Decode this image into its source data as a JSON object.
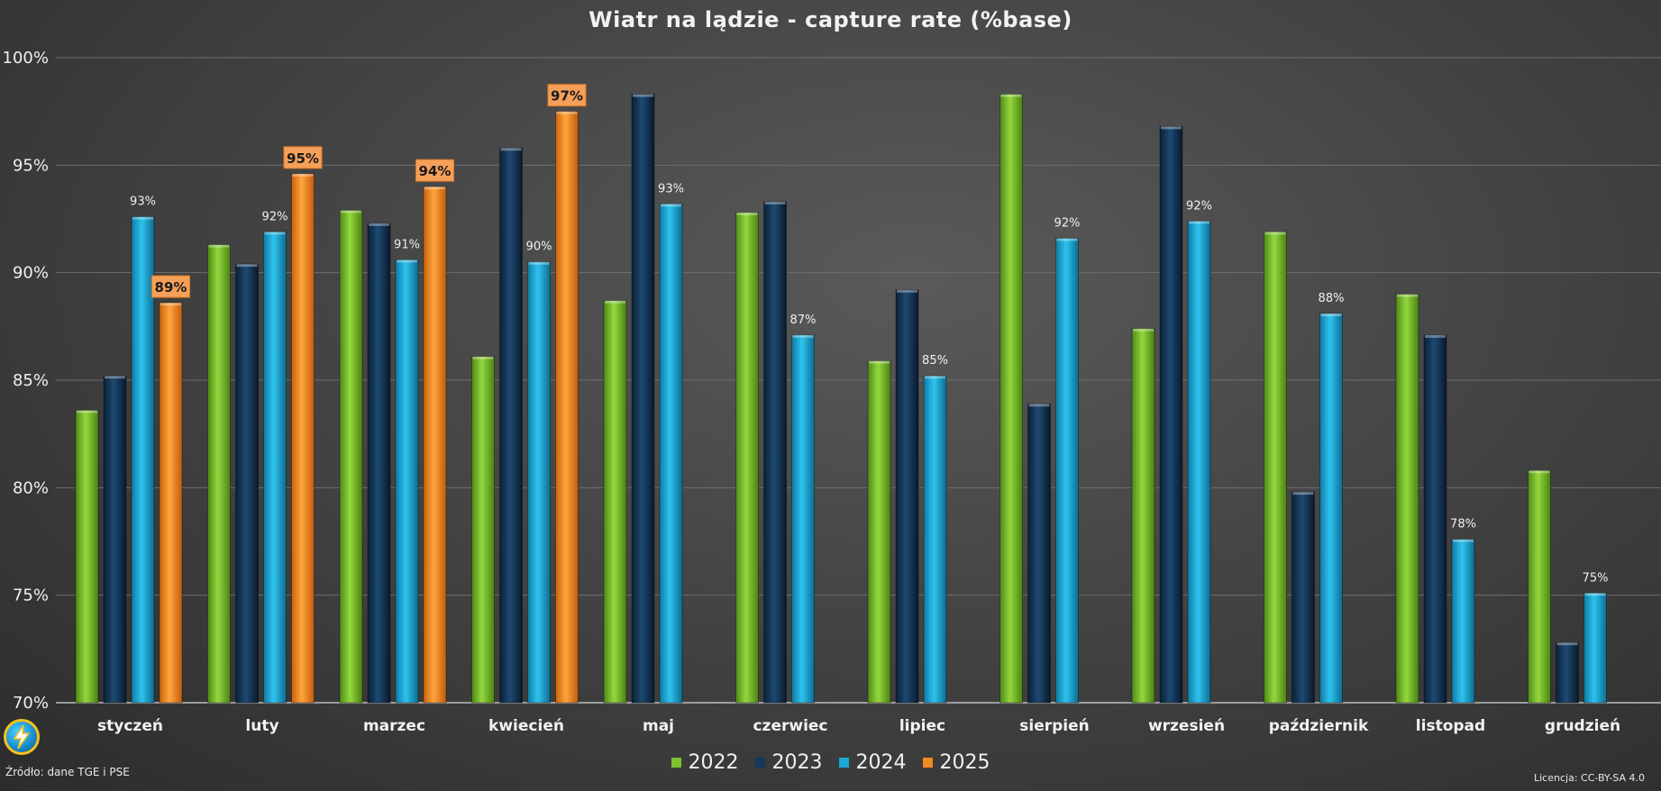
{
  "page": {
    "source": "Źródło: dane TGE i PSE",
    "license": "Licencja: CC-BY-SA 4.0"
  },
  "chart_data": {
    "type": "bar",
    "title": "Wiatr na lądzie - capture rate (%base)",
    "xlabel": "",
    "ylabel": "",
    "ylim": [
      70,
      100
    ],
    "yticks": [
      70,
      75,
      80,
      85,
      90,
      95,
      100
    ],
    "yticklabels": [
      "70%",
      "75%",
      "80%",
      "85%",
      "90%",
      "95%",
      "100%"
    ],
    "grid": true,
    "legend_position": "bottom",
    "categories": [
      "styczeń",
      "luty",
      "marzec",
      "kwiecień",
      "maj",
      "czerwiec",
      "lipiec",
      "sierpień",
      "wrzesień",
      "październik",
      "listopad",
      "grudzień"
    ],
    "series": [
      {
        "name": "2022",
        "color": "#7cc12e",
        "values": [
          83.6,
          91.3,
          92.9,
          86.1,
          88.7,
          92.8,
          85.9,
          98.3,
          87.4,
          91.9,
          89.0,
          80.8
        ],
        "labels": []
      },
      {
        "name": "2023",
        "color": "#14385a",
        "values": [
          85.2,
          90.4,
          92.3,
          95.8,
          98.3,
          93.3,
          89.2,
          83.9,
          96.8,
          79.8,
          87.1,
          72.8
        ],
        "labels": []
      },
      {
        "name": "2024",
        "color": "#1ba8d6",
        "values": [
          92.6,
          91.9,
          90.6,
          90.5,
          93.2,
          87.1,
          85.2,
          91.6,
          92.4,
          88.1,
          77.6,
          75.1
        ],
        "labels": [
          "93%",
          "92%",
          "91%",
          "90%",
          "93%",
          "87%",
          "85%",
          "92%",
          "92%",
          "88%",
          "78%",
          "75%"
        ]
      },
      {
        "name": "2025",
        "color": "#f08a22",
        "values": [
          88.6,
          94.6,
          94.0,
          97.5,
          null,
          null,
          null,
          null,
          null,
          null,
          null,
          null
        ],
        "labels": [
          "89%",
          "95%",
          "94%",
          "97%",
          "",
          "",
          "",
          "",
          "",
          "",
          "",
          ""
        ]
      }
    ]
  }
}
